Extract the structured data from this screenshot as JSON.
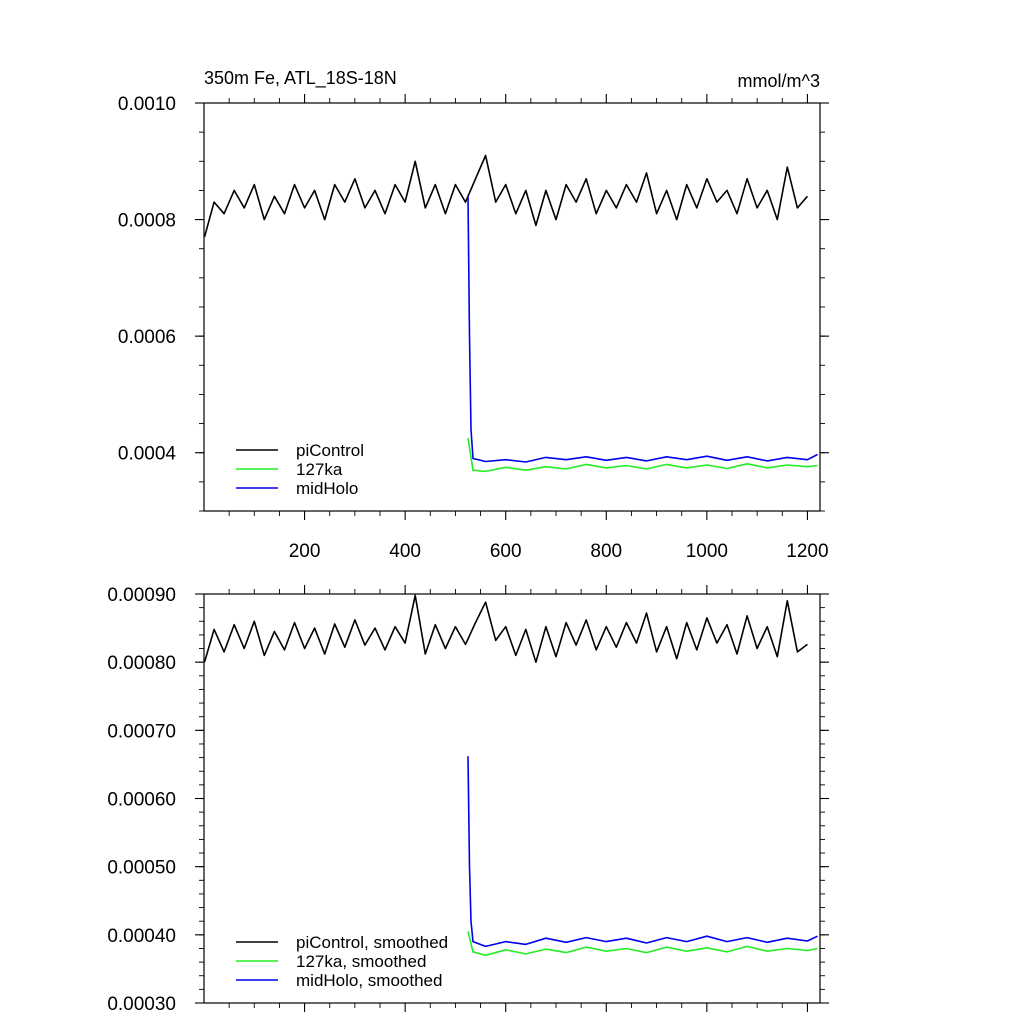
{
  "chart_data": [
    {
      "type": "line",
      "title": "350m Fe, ATL_18S-18N",
      "units": "mmol/m^3",
      "xlim": [
        0,
        1225
      ],
      "ylim": [
        0.0003,
        0.001
      ],
      "x_ticks": [
        200,
        400,
        600,
        800,
        1000,
        1200
      ],
      "x_tick_labels": [
        "200",
        "400",
        "600",
        "800",
        "1000",
        "1200"
      ],
      "y_ticks": [
        0.0004,
        0.0006,
        0.0008,
        0.001
      ],
      "y_tick_labels": [
        "0.0004",
        "0.0006",
        "0.0008",
        "0.0010"
      ],
      "legend_position": "bottom-left",
      "series": [
        {
          "name": "piControl",
          "color": "#000000",
          "points": [
            [
              1,
              0.00077
            ],
            [
              20,
              0.00083
            ],
            [
              40,
              0.00081
            ],
            [
              60,
              0.00085
            ],
            [
              80,
              0.00082
            ],
            [
              100,
              0.00086
            ],
            [
              120,
              0.0008
            ],
            [
              140,
              0.00084
            ],
            [
              160,
              0.00081
            ],
            [
              180,
              0.00086
            ],
            [
              200,
              0.00082
            ],
            [
              220,
              0.00085
            ],
            [
              240,
              0.0008
            ],
            [
              260,
              0.00086
            ],
            [
              280,
              0.00083
            ],
            [
              300,
              0.00087
            ],
            [
              320,
              0.00082
            ],
            [
              340,
              0.00085
            ],
            [
              360,
              0.00081
            ],
            [
              380,
              0.00086
            ],
            [
              400,
              0.00083
            ],
            [
              420,
              0.0009
            ],
            [
              440,
              0.00082
            ],
            [
              460,
              0.00086
            ],
            [
              480,
              0.00081
            ],
            [
              500,
              0.00086
            ],
            [
              520,
              0.00083
            ],
            [
              540,
              0.00087
            ],
            [
              560,
              0.00091
            ],
            [
              580,
              0.00083
            ],
            [
              600,
              0.00086
            ],
            [
              620,
              0.00081
            ],
            [
              640,
              0.00085
            ],
            [
              660,
              0.00079
            ],
            [
              680,
              0.00085
            ],
            [
              700,
              0.0008
            ],
            [
              720,
              0.00086
            ],
            [
              740,
              0.00083
            ],
            [
              760,
              0.00087
            ],
            [
              780,
              0.00081
            ],
            [
              800,
              0.00085
            ],
            [
              820,
              0.00082
            ],
            [
              840,
              0.00086
            ],
            [
              860,
              0.00083
            ],
            [
              880,
              0.00088
            ],
            [
              900,
              0.00081
            ],
            [
              920,
              0.00085
            ],
            [
              940,
              0.0008
            ],
            [
              960,
              0.00086
            ],
            [
              980,
              0.00082
            ],
            [
              1000,
              0.00087
            ],
            [
              1020,
              0.00083
            ],
            [
              1040,
              0.00085
            ],
            [
              1060,
              0.00081
            ],
            [
              1080,
              0.00087
            ],
            [
              1100,
              0.00082
            ],
            [
              1120,
              0.00085
            ],
            [
              1140,
              0.0008
            ],
            [
              1160,
              0.00089
            ],
            [
              1180,
              0.00082
            ],
            [
              1200,
              0.00084
            ]
          ]
        },
        {
          "name": "127ka",
          "color": "#22ee22",
          "points": [
            [
              525,
              0.000425
            ],
            [
              535,
              0.00037
            ],
            [
              560,
              0.000368
            ],
            [
              600,
              0.000375
            ],
            [
              640,
              0.00037
            ],
            [
              680,
              0.000376
            ],
            [
              720,
              0.000372
            ],
            [
              760,
              0.00038
            ],
            [
              800,
              0.000374
            ],
            [
              840,
              0.000378
            ],
            [
              880,
              0.000372
            ],
            [
              920,
              0.00038
            ],
            [
              960,
              0.000374
            ],
            [
              1000,
              0.000379
            ],
            [
              1040,
              0.000373
            ],
            [
              1080,
              0.000381
            ],
            [
              1120,
              0.000374
            ],
            [
              1160,
              0.000379
            ],
            [
              1200,
              0.000376
            ],
            [
              1220,
              0.000378
            ]
          ]
        },
        {
          "name": "midHolo",
          "color": "#0000ee",
          "points": [
            [
              525,
              0.00084
            ],
            [
              528,
              0.0006
            ],
            [
              531,
              0.00044
            ],
            [
              535,
              0.00039
            ],
            [
              560,
              0.000385
            ],
            [
              600,
              0.000388
            ],
            [
              640,
              0.000384
            ],
            [
              680,
              0.000392
            ],
            [
              720,
              0.000388
            ],
            [
              760,
              0.000393
            ],
            [
              800,
              0.000387
            ],
            [
              840,
              0.000392
            ],
            [
              880,
              0.000386
            ],
            [
              920,
              0.000393
            ],
            [
              960,
              0.000388
            ],
            [
              1000,
              0.000394
            ],
            [
              1040,
              0.000387
            ],
            [
              1080,
              0.000393
            ],
            [
              1120,
              0.000386
            ],
            [
              1160,
              0.000392
            ],
            [
              1200,
              0.000388
            ],
            [
              1220,
              0.000397
            ]
          ]
        }
      ]
    },
    {
      "type": "line",
      "xlim": [
        0,
        1225
      ],
      "ylim": [
        0.0003,
        0.0009
      ],
      "x_ticks": [
        200,
        400,
        600,
        800,
        1000,
        1200
      ],
      "y_ticks": [
        0.0003,
        0.0004,
        0.0005,
        0.0006,
        0.0007,
        0.0008,
        0.0009
      ],
      "y_tick_labels": [
        "0.00030",
        "0.00040",
        "0.00050",
        "0.00060",
        "0.00070",
        "0.00080",
        "0.00090"
      ],
      "legend_position": "bottom-left",
      "series": [
        {
          "name": "piControl, smoothed",
          "color": "#000000",
          "points": [
            [
              1,
              0.0008
            ],
            [
              20,
              0.000848
            ],
            [
              40,
              0.000815
            ],
            [
              60,
              0.000855
            ],
            [
              80,
              0.00082
            ],
            [
              100,
              0.00086
            ],
            [
              120,
              0.00081
            ],
            [
              140,
              0.000845
            ],
            [
              160,
              0.000818
            ],
            [
              180,
              0.000858
            ],
            [
              200,
              0.00082
            ],
            [
              220,
              0.00085
            ],
            [
              240,
              0.000812
            ],
            [
              260,
              0.000856
            ],
            [
              280,
              0.000822
            ],
            [
              300,
              0.000862
            ],
            [
              320,
              0.000825
            ],
            [
              340,
              0.00085
            ],
            [
              360,
              0.000818
            ],
            [
              380,
              0.000852
            ],
            [
              400,
              0.000828
            ],
            [
              420,
              0.000898
            ],
            [
              440,
              0.000812
            ],
            [
              460,
              0.000855
            ],
            [
              480,
              0.00082
            ],
            [
              500,
              0.000852
            ],
            [
              520,
              0.000826
            ],
            [
              540,
              0.000858
            ],
            [
              560,
              0.000888
            ],
            [
              580,
              0.000832
            ],
            [
              600,
              0.000852
            ],
            [
              620,
              0.00081
            ],
            [
              640,
              0.000848
            ],
            [
              660,
              0.0008
            ],
            [
              680,
              0.000852
            ],
            [
              700,
              0.000808
            ],
            [
              720,
              0.000858
            ],
            [
              740,
              0.000825
            ],
            [
              760,
              0.000862
            ],
            [
              780,
              0.000818
            ],
            [
              800,
              0.000852
            ],
            [
              820,
              0.000822
            ],
            [
              840,
              0.000858
            ],
            [
              860,
              0.000828
            ],
            [
              880,
              0.000872
            ],
            [
              900,
              0.000815
            ],
            [
              920,
              0.000852
            ],
            [
              940,
              0.000805
            ],
            [
              960,
              0.000858
            ],
            [
              980,
              0.000818
            ],
            [
              1000,
              0.000865
            ],
            [
              1020,
              0.000828
            ],
            [
              1040,
              0.000855
            ],
            [
              1060,
              0.000812
            ],
            [
              1080,
              0.000868
            ],
            [
              1100,
              0.00082
            ],
            [
              1120,
              0.000852
            ],
            [
              1140,
              0.000808
            ],
            [
              1160,
              0.00089
            ],
            [
              1180,
              0.000815
            ],
            [
              1200,
              0.000826
            ]
          ]
        },
        {
          "name": "127ka, smoothed",
          "color": "#22ee22",
          "points": [
            [
              525,
              0.000405
            ],
            [
              535,
              0.000375
            ],
            [
              560,
              0.00037
            ],
            [
              600,
              0.000378
            ],
            [
              640,
              0.000372
            ],
            [
              680,
              0.000379
            ],
            [
              720,
              0.000374
            ],
            [
              760,
              0.000382
            ],
            [
              800,
              0.000376
            ],
            [
              840,
              0.00038
            ],
            [
              880,
              0.000374
            ],
            [
              920,
              0.000382
            ],
            [
              960,
              0.000376
            ],
            [
              1000,
              0.000381
            ],
            [
              1040,
              0.000375
            ],
            [
              1080,
              0.000383
            ],
            [
              1120,
              0.000376
            ],
            [
              1160,
              0.00038
            ],
            [
              1200,
              0.000377
            ],
            [
              1220,
              0.00038
            ]
          ]
        },
        {
          "name": "midHolo, smoothed",
          "color": "#0000ee",
          "points": [
            [
              525,
              0.000662
            ],
            [
              528,
              0.0005
            ],
            [
              531,
              0.00042
            ],
            [
              535,
              0.00039
            ],
            [
              560,
              0.000383
            ],
            [
              600,
              0.00039
            ],
            [
              640,
              0.000386
            ],
            [
              680,
              0.000395
            ],
            [
              720,
              0.000389
            ],
            [
              760,
              0.000396
            ],
            [
              800,
              0.00039
            ],
            [
              840,
              0.000395
            ],
            [
              880,
              0.000388
            ],
            [
              920,
              0.000396
            ],
            [
              960,
              0.00039
            ],
            [
              1000,
              0.000398
            ],
            [
              1040,
              0.00039
            ],
            [
              1080,
              0.000396
            ],
            [
              1120,
              0.000389
            ],
            [
              1160,
              0.000395
            ],
            [
              1200,
              0.000391
            ],
            [
              1220,
              0.000398
            ]
          ]
        }
      ]
    }
  ]
}
